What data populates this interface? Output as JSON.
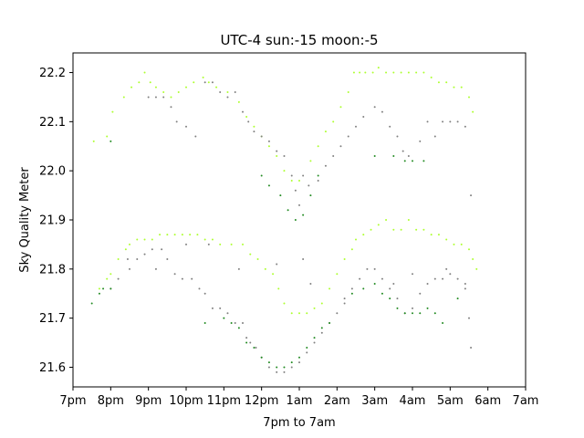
{
  "chart_data": {
    "type": "scatter",
    "title": "UTC-4 sun:-15 moon:-5",
    "xlabel": "7pm to 7am",
    "ylabel": "Sky Quality Meter",
    "x_tick_labels": [
      "7pm",
      "8pm",
      "9pm",
      "10pm",
      "11pm",
      "12pm",
      "1am",
      "2am",
      "3am",
      "4am",
      "5am",
      "6am",
      "7am"
    ],
    "xlim": [
      0,
      12
    ],
    "ylim": [
      21.56,
      22.24
    ],
    "y_ticks": [
      21.6,
      21.7,
      21.8,
      21.9,
      22.0,
      22.1,
      22.2
    ],
    "grid": false,
    "legend": "none",
    "colors": {
      "gray": "#808080",
      "green": "#228b22",
      "yellow": "#adff2f"
    },
    "series": [
      {
        "color_key": "yellow",
        "points": [
          [
            0.55,
            22.06
          ],
          [
            0.9,
            22.07
          ],
          [
            1.05,
            22.12
          ],
          [
            1.35,
            22.15
          ],
          [
            1.55,
            22.17
          ],
          [
            1.75,
            22.18
          ],
          [
            1.9,
            22.2
          ],
          [
            2.05,
            22.18
          ],
          [
            2.2,
            22.17
          ],
          [
            2.4,
            22.16
          ],
          [
            2.6,
            22.15
          ],
          [
            2.8,
            22.16
          ],
          [
            3.0,
            22.17
          ],
          [
            3.2,
            22.18
          ],
          [
            3.45,
            22.19
          ],
          [
            3.6,
            22.18
          ],
          [
            3.8,
            22.17
          ],
          [
            4.1,
            22.16
          ],
          [
            4.4,
            22.14
          ],
          [
            4.6,
            22.11
          ],
          [
            4.8,
            22.09
          ],
          [
            5.0,
            22.07
          ],
          [
            5.2,
            22.05
          ],
          [
            5.4,
            22.03
          ],
          [
            5.6,
            22.0
          ],
          [
            5.8,
            21.98
          ],
          [
            6.0,
            21.98
          ],
          [
            6.3,
            22.02
          ],
          [
            6.5,
            22.05
          ],
          [
            6.7,
            22.08
          ],
          [
            6.9,
            22.1
          ],
          [
            7.1,
            22.13
          ],
          [
            7.3,
            22.16
          ],
          [
            7.45,
            22.2
          ],
          [
            7.6,
            22.2
          ],
          [
            7.75,
            22.2
          ],
          [
            7.95,
            22.2
          ],
          [
            8.1,
            22.21
          ],
          [
            8.3,
            22.2
          ],
          [
            8.5,
            22.2
          ],
          [
            8.7,
            22.2
          ],
          [
            8.9,
            22.2
          ],
          [
            9.1,
            22.2
          ],
          [
            9.3,
            22.2
          ],
          [
            9.5,
            22.19
          ],
          [
            9.7,
            22.18
          ],
          [
            9.9,
            22.18
          ],
          [
            10.1,
            22.17
          ],
          [
            10.3,
            22.17
          ],
          [
            10.5,
            22.15
          ],
          [
            10.6,
            22.12
          ],
          [
            0.7,
            21.76
          ],
          [
            0.9,
            21.78
          ],
          [
            1.0,
            21.79
          ],
          [
            1.2,
            21.82
          ],
          [
            1.4,
            21.84
          ],
          [
            1.5,
            21.85
          ],
          [
            1.7,
            21.86
          ],
          [
            1.9,
            21.86
          ],
          [
            2.1,
            21.86
          ],
          [
            2.3,
            21.87
          ],
          [
            2.5,
            21.87
          ],
          [
            2.7,
            21.87
          ],
          [
            2.9,
            21.87
          ],
          [
            3.1,
            21.87
          ],
          [
            3.3,
            21.87
          ],
          [
            3.5,
            21.86
          ],
          [
            3.7,
            21.86
          ],
          [
            3.9,
            21.85
          ],
          [
            4.2,
            21.85
          ],
          [
            4.5,
            21.85
          ],
          [
            4.7,
            21.83
          ],
          [
            4.9,
            21.82
          ],
          [
            5.1,
            21.8
          ],
          [
            5.3,
            21.79
          ],
          [
            5.45,
            21.76
          ],
          [
            5.6,
            21.73
          ],
          [
            5.8,
            21.71
          ],
          [
            6.0,
            21.71
          ],
          [
            6.2,
            21.71
          ],
          [
            6.4,
            21.72
          ],
          [
            6.6,
            21.73
          ],
          [
            6.8,
            21.76
          ],
          [
            7.0,
            21.79
          ],
          [
            7.2,
            21.82
          ],
          [
            7.4,
            21.84
          ],
          [
            7.5,
            21.86
          ],
          [
            7.7,
            21.87
          ],
          [
            7.9,
            21.88
          ],
          [
            8.1,
            21.89
          ],
          [
            8.3,
            21.9
          ],
          [
            8.5,
            21.88
          ],
          [
            8.7,
            21.88
          ],
          [
            8.9,
            21.9
          ],
          [
            9.1,
            21.88
          ],
          [
            9.3,
            21.88
          ],
          [
            9.5,
            21.87
          ],
          [
            9.7,
            21.87
          ],
          [
            9.9,
            21.86
          ],
          [
            10.1,
            21.85
          ],
          [
            10.3,
            21.85
          ],
          [
            10.5,
            21.84
          ],
          [
            10.6,
            21.82
          ],
          [
            10.7,
            21.8
          ]
        ]
      },
      {
        "color_key": "gray",
        "points": [
          [
            2.0,
            22.15
          ],
          [
            2.2,
            22.15
          ],
          [
            2.4,
            22.15
          ],
          [
            2.6,
            22.13
          ],
          [
            2.75,
            22.1
          ],
          [
            3.0,
            22.09
          ],
          [
            3.25,
            22.07
          ],
          [
            3.5,
            22.18
          ],
          [
            3.7,
            22.18
          ],
          [
            3.9,
            22.16
          ],
          [
            4.1,
            22.15
          ],
          [
            4.3,
            22.16
          ],
          [
            4.5,
            22.12
          ],
          [
            4.65,
            22.1
          ],
          [
            4.8,
            22.08
          ],
          [
            5.0,
            22.07
          ],
          [
            5.2,
            22.06
          ],
          [
            5.4,
            22.04
          ],
          [
            5.6,
            22.03
          ],
          [
            5.8,
            21.99
          ],
          [
            5.9,
            21.96
          ],
          [
            6.0,
            21.93
          ],
          [
            6.1,
            21.99
          ],
          [
            6.25,
            21.97
          ],
          [
            6.5,
            21.98
          ],
          [
            6.7,
            22.01
          ],
          [
            6.9,
            22.03
          ],
          [
            7.1,
            22.05
          ],
          [
            7.3,
            22.07
          ],
          [
            7.5,
            22.09
          ],
          [
            7.7,
            22.11
          ],
          [
            8.0,
            22.13
          ],
          [
            8.2,
            22.12
          ],
          [
            8.4,
            22.09
          ],
          [
            8.6,
            22.07
          ],
          [
            8.75,
            22.04
          ],
          [
            8.9,
            22.03
          ],
          [
            9.2,
            22.06
          ],
          [
            9.4,
            22.1
          ],
          [
            9.6,
            22.07
          ],
          [
            9.8,
            22.1
          ],
          [
            10.0,
            22.1
          ],
          [
            10.2,
            22.1
          ],
          [
            10.4,
            22.09
          ],
          [
            10.55,
            21.95
          ],
          [
            1.0,
            21.76
          ],
          [
            1.2,
            21.78
          ],
          [
            1.5,
            21.8
          ],
          [
            1.7,
            21.82
          ],
          [
            1.9,
            21.83
          ],
          [
            2.1,
            21.84
          ],
          [
            2.35,
            21.84
          ],
          [
            2.5,
            21.82
          ],
          [
            2.7,
            21.79
          ],
          [
            2.9,
            21.78
          ],
          [
            3.15,
            21.78
          ],
          [
            3.35,
            21.76
          ],
          [
            3.5,
            21.75
          ],
          [
            3.7,
            21.72
          ],
          [
            3.9,
            21.72
          ],
          [
            4.1,
            21.71
          ],
          [
            4.3,
            21.69
          ],
          [
            4.5,
            21.69
          ],
          [
            4.6,
            21.66
          ],
          [
            4.7,
            21.65
          ],
          [
            4.85,
            21.64
          ],
          [
            5.0,
            21.62
          ],
          [
            5.2,
            21.6
          ],
          [
            5.4,
            21.59
          ],
          [
            5.6,
            21.59
          ],
          [
            5.8,
            21.6
          ],
          [
            6.0,
            21.61
          ],
          [
            6.2,
            21.63
          ],
          [
            6.4,
            21.65
          ],
          [
            6.6,
            21.67
          ],
          [
            6.8,
            21.69
          ],
          [
            7.0,
            21.71
          ],
          [
            7.2,
            21.74
          ],
          [
            7.4,
            21.76
          ],
          [
            7.6,
            21.78
          ],
          [
            7.8,
            21.8
          ],
          [
            8.0,
            21.8
          ],
          [
            8.2,
            21.78
          ],
          [
            8.4,
            21.76
          ],
          [
            8.6,
            21.74
          ],
          [
            8.8,
            21.71
          ],
          [
            9.0,
            21.72
          ],
          [
            9.2,
            21.75
          ],
          [
            9.4,
            21.77
          ],
          [
            9.6,
            21.78
          ],
          [
            9.8,
            21.78
          ],
          [
            10.0,
            21.79
          ],
          [
            10.2,
            21.78
          ],
          [
            10.4,
            21.76
          ],
          [
            10.55,
            21.64
          ],
          [
            1.45,
            21.82
          ],
          [
            2.2,
            21.8
          ],
          [
            3.0,
            21.85
          ],
          [
            3.6,
            21.85
          ],
          [
            4.4,
            21.8
          ],
          [
            5.4,
            21.81
          ],
          [
            6.1,
            21.82
          ],
          [
            6.3,
            21.77
          ],
          [
            7.2,
            21.73
          ],
          [
            8.5,
            21.77
          ],
          [
            9.0,
            21.79
          ],
          [
            9.9,
            21.8
          ],
          [
            10.4,
            21.77
          ],
          [
            10.5,
            21.7
          ]
        ]
      },
      {
        "color_key": "green",
        "points": [
          [
            0.5,
            21.73
          ],
          [
            0.7,
            21.75
          ],
          [
            0.8,
            21.76
          ],
          [
            1.0,
            21.76
          ],
          [
            3.5,
            21.69
          ],
          [
            4.0,
            21.7
          ],
          [
            4.2,
            21.69
          ],
          [
            4.4,
            21.68
          ],
          [
            4.6,
            21.65
          ],
          [
            4.8,
            21.64
          ],
          [
            5.0,
            21.62
          ],
          [
            5.2,
            21.61
          ],
          [
            5.4,
            21.6
          ],
          [
            5.6,
            21.6
          ],
          [
            5.8,
            21.61
          ],
          [
            6.0,
            21.62
          ],
          [
            6.2,
            21.64
          ],
          [
            6.4,
            21.66
          ],
          [
            6.6,
            21.68
          ],
          [
            6.8,
            21.69
          ],
          [
            7.4,
            21.75
          ],
          [
            7.7,
            21.76
          ],
          [
            8.0,
            21.77
          ],
          [
            8.2,
            21.75
          ],
          [
            8.4,
            21.74
          ],
          [
            8.6,
            21.72
          ],
          [
            8.8,
            21.71
          ],
          [
            9.0,
            21.71
          ],
          [
            9.2,
            21.71
          ],
          [
            9.4,
            21.72
          ],
          [
            9.6,
            21.71
          ],
          [
            9.8,
            21.69
          ],
          [
            1.0,
            22.06
          ],
          [
            5.0,
            21.99
          ],
          [
            5.2,
            21.97
          ],
          [
            5.5,
            21.95
          ],
          [
            5.7,
            21.92
          ],
          [
            5.9,
            21.9
          ],
          [
            6.1,
            21.91
          ],
          [
            6.3,
            21.95
          ],
          [
            6.5,
            21.99
          ],
          [
            8.0,
            22.03
          ],
          [
            8.5,
            22.03
          ],
          [
            8.8,
            22.02
          ],
          [
            9.0,
            22.02
          ],
          [
            9.3,
            22.02
          ],
          [
            10.2,
            21.74
          ]
        ]
      }
    ]
  }
}
